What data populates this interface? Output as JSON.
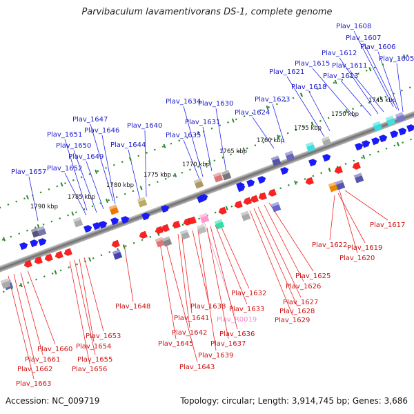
{
  "title": "Parvibaculum lavamentivorans DS-1, complete genome",
  "footer": {
    "accession": "Accession: NC_009719",
    "topology": "Topology: circular; Length: 3,914,745 bp; Genes: 3,686"
  },
  "colors": {
    "forward": "#1a1aff",
    "reverse": "#ff2020",
    "rna": "#ff88cc",
    "backbone": "#888888",
    "tick": "#2a8a2a"
  },
  "scale_labels": [
    "1790 kbp",
    "1785 kbp",
    "1780 kbp",
    "1775 kbp",
    "1770 kbp",
    "1765 kbp",
    "1760 kbp",
    "1755 kbp",
    "1750 kbp",
    "1745 kbp"
  ],
  "top_labels": [
    "Plav_1608",
    "Plav_1607",
    "Plav_1606",
    "Plav_1605",
    "Plav_1612",
    "Plav_1611",
    "Plav_1613",
    "Plav_1615",
    "Plav_1621",
    "Plav_1618",
    "Plav_1623",
    "Plav_1624",
    "Plav_1630",
    "Plav_1634",
    "Plav_1631",
    "Plav_1635",
    "Plav_1640",
    "Plav_1647",
    "Plav_1646",
    "Plav_1651",
    "Plav_1644",
    "Plav_1650",
    "Plav_1649",
    "Plav_1652",
    "Plav_1657"
  ],
  "bottom_labels": [
    "Plav_1617",
    "Plav_1622",
    "Plav_1619",
    "Plav_1620",
    "Plav_1625",
    "Plav_1626",
    "Plav_1627",
    "Plav_1628",
    "Plav_1629",
    "Plav_1632",
    "Plav_1633",
    "Plav_1638",
    "Plav_R0019",
    "Plav_1641",
    "Plav_1636",
    "Plav_1642",
    "Plav_1637",
    "Plav_1645",
    "Plav_1639",
    "Plav_1643",
    "Plav_1648",
    "Plav_1653",
    "Plav_1654",
    "Plav_1655",
    "Plav_1656",
    "Plav_1660",
    "Plav_1661",
    "Plav_1662",
    "Plav_1663"
  ]
}
